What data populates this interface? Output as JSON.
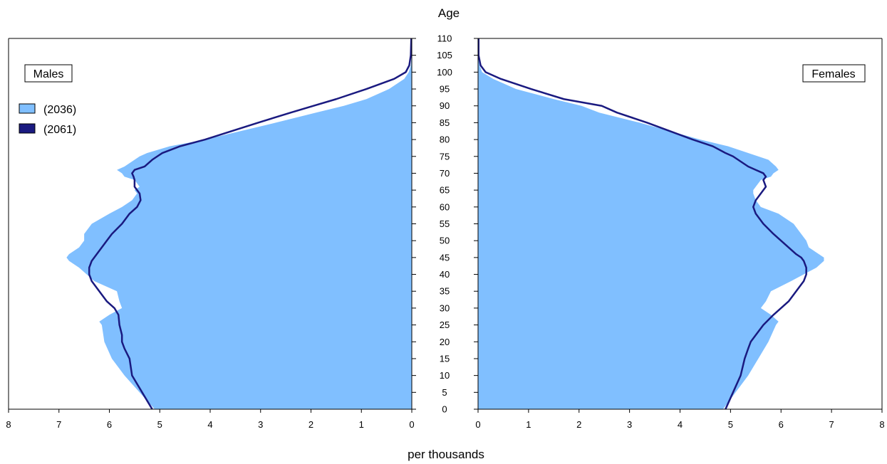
{
  "chart_data": {
    "type": "area",
    "title": "Age",
    "xlabel": "per thousands",
    "ylabel": "Age",
    "ylim": [
      0,
      110
    ],
    "xlim": [
      0,
      8
    ],
    "age_ticks": [
      "0",
      "5",
      "10",
      "15",
      "20",
      "25",
      "30",
      "35",
      "40",
      "45",
      "50",
      "55",
      "60",
      "65",
      "70",
      "75",
      "80",
      "85",
      "90",
      "95",
      "100",
      "105",
      "110"
    ],
    "x_ticks": [
      "0",
      "1",
      "2",
      "3",
      "4",
      "5",
      "6",
      "7",
      "8"
    ],
    "panels": {
      "left": "Males",
      "right": "Females"
    },
    "legend": [
      {
        "label": "(2036)",
        "color": "#80bfff",
        "style": "area"
      },
      {
        "label": "(2061)",
        "color": "#1a1a80",
        "style": "line"
      }
    ],
    "series": [
      {
        "name": "(2036)",
        "panel": "Males",
        "ages": [
          0,
          5,
          10,
          15,
          20,
          25,
          26,
          28,
          30,
          32,
          35,
          38,
          40,
          42,
          44,
          45,
          46,
          48,
          50,
          52,
          55,
          58,
          60,
          62,
          64,
          65,
          66,
          68,
          69,
          70,
          71,
          72,
          74,
          75,
          76,
          78,
          80,
          85,
          88,
          90,
          92,
          95,
          98,
          100,
          102,
          105,
          110
        ],
        "values": [
          5.1,
          5.4,
          5.7,
          5.95,
          6.1,
          6.15,
          6.2,
          6.0,
          5.75,
          5.8,
          5.85,
          6.3,
          6.45,
          6.6,
          6.8,
          6.85,
          6.8,
          6.6,
          6.5,
          6.5,
          6.35,
          6.0,
          5.75,
          5.55,
          5.45,
          5.5,
          5.4,
          5.5,
          5.7,
          5.75,
          5.85,
          5.7,
          5.5,
          5.4,
          5.25,
          4.8,
          4.1,
          2.7,
          1.9,
          1.35,
          0.9,
          0.45,
          0.15,
          0.06,
          0.02,
          0.005,
          0
        ]
      },
      {
        "name": "(2061)",
        "panel": "Males",
        "ages": [
          0,
          5,
          10,
          15,
          18,
          20,
          22,
          25,
          28,
          30,
          32,
          35,
          38,
          40,
          42,
          44,
          45,
          46,
          48,
          50,
          52,
          55,
          58,
          60,
          62,
          64,
          65,
          66,
          68,
          69,
          70,
          71,
          72,
          74,
          75,
          76,
          78,
          80,
          85,
          88,
          90,
          92,
          95,
          98,
          100,
          102,
          105,
          110
        ],
        "values": [
          5.15,
          5.35,
          5.55,
          5.6,
          5.7,
          5.75,
          5.75,
          5.8,
          5.82,
          5.9,
          6.05,
          6.2,
          6.35,
          6.4,
          6.4,
          6.35,
          6.3,
          6.25,
          6.15,
          6.05,
          5.95,
          5.75,
          5.6,
          5.45,
          5.38,
          5.4,
          5.45,
          5.5,
          5.5,
          5.52,
          5.55,
          5.5,
          5.3,
          5.15,
          5.05,
          4.95,
          4.6,
          4.1,
          3.05,
          2.4,
          1.95,
          1.5,
          0.9,
          0.35,
          0.12,
          0.05,
          0.02,
          0.01
        ]
      },
      {
        "name": "(2036)",
        "panel": "Females",
        "ages": [
          0,
          5,
          10,
          15,
          20,
          25,
          26,
          28,
          30,
          32,
          35,
          38,
          40,
          42,
          44,
          45,
          46,
          48,
          50,
          52,
          55,
          58,
          60,
          62,
          64,
          65,
          66,
          68,
          69,
          70,
          71,
          72,
          74,
          75,
          76,
          78,
          80,
          85,
          88,
          90,
          92,
          95,
          98,
          100,
          102,
          105,
          110
        ],
        "values": [
          4.85,
          5.1,
          5.35,
          5.55,
          5.75,
          5.9,
          5.95,
          5.8,
          5.6,
          5.7,
          5.8,
          6.2,
          6.45,
          6.7,
          6.85,
          6.85,
          6.75,
          6.55,
          6.5,
          6.4,
          6.25,
          5.95,
          5.6,
          5.5,
          5.45,
          5.45,
          5.5,
          5.6,
          5.8,
          5.85,
          5.95,
          5.9,
          5.75,
          5.55,
          5.35,
          4.95,
          4.4,
          3.2,
          2.4,
          2.05,
          1.5,
          0.75,
          0.3,
          0.08,
          0.03,
          0.01,
          0
        ]
      },
      {
        "name": "(2061)",
        "panel": "Females",
        "ages": [
          0,
          5,
          10,
          15,
          18,
          20,
          22,
          25,
          28,
          30,
          32,
          35,
          38,
          40,
          42,
          44,
          45,
          46,
          48,
          50,
          52,
          55,
          58,
          60,
          62,
          64,
          65,
          66,
          68,
          69,
          70,
          71,
          72,
          74,
          75,
          76,
          78,
          80,
          85,
          88,
          90,
          92,
          95,
          98,
          100,
          102,
          105,
          110
        ],
        "values": [
          4.9,
          5.05,
          5.2,
          5.28,
          5.35,
          5.4,
          5.5,
          5.65,
          5.85,
          6.0,
          6.15,
          6.3,
          6.45,
          6.5,
          6.5,
          6.45,
          6.4,
          6.3,
          6.15,
          6.0,
          5.85,
          5.65,
          5.5,
          5.45,
          5.5,
          5.6,
          5.65,
          5.7,
          5.65,
          5.7,
          5.65,
          5.5,
          5.35,
          5.15,
          5.05,
          4.9,
          4.65,
          4.25,
          3.35,
          2.75,
          2.45,
          1.7,
          1.05,
          0.45,
          0.15,
          0.05,
          0.01,
          0.01
        ]
      }
    ]
  }
}
